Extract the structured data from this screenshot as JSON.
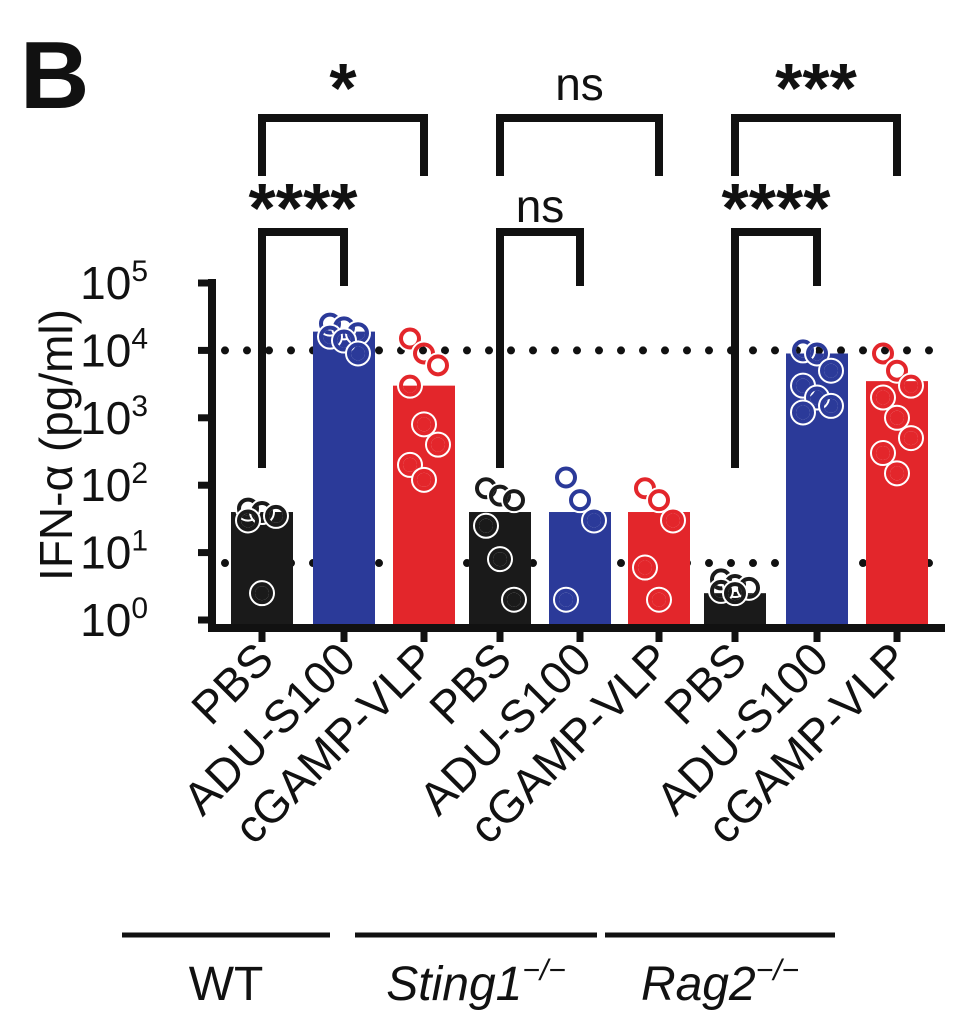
{
  "panel_label": "B",
  "chart_data": {
    "type": "bar",
    "ylabel": "IFN-α (pg/ml)",
    "yscale": "log",
    "ylim": [
      1,
      100000
    ],
    "yticks": [
      {
        "value": 1,
        "base": "10",
        "exp": "0"
      },
      {
        "value": 10,
        "base": "10",
        "exp": "1"
      },
      {
        "value": 100,
        "base": "10",
        "exp": "2"
      },
      {
        "value": 1000,
        "base": "10",
        "exp": "3"
      },
      {
        "value": 10000,
        "base": "10",
        "exp": "4"
      },
      {
        "value": 100000,
        "base": "10",
        "exp": "5"
      }
    ],
    "reference_lines": [
      {
        "value": 10000,
        "style": "dotted"
      },
      {
        "value": 7,
        "style": "dotted"
      }
    ],
    "categories": [
      "PBS",
      "ADU-S100",
      "cGAMP-VLP",
      "PBS",
      "ADU-S100",
      "cGAMP-VLP",
      "PBS",
      "ADU-S100",
      "cGAMP-VLP"
    ],
    "groups": [
      {
        "label": "WT",
        "italic": false,
        "sup": "",
        "categories": [
          0,
          1,
          2
        ]
      },
      {
        "label": "Sting1",
        "italic": true,
        "sup": "−/−",
        "categories": [
          3,
          4,
          5
        ]
      },
      {
        "label": "Rag2",
        "italic": true,
        "sup": "−/−",
        "categories": [
          6,
          7,
          8
        ]
      }
    ],
    "colors": {
      "PBS": "#1a1a1a",
      "ADU-S100": "#2b3a99",
      "cGAMP-VLP": "#e3262b"
    },
    "bars": [
      {
        "category": "PBS",
        "group": "WT",
        "value": 40,
        "points": [
          45,
          40,
          35,
          30,
          2.5
        ]
      },
      {
        "category": "ADU-S100",
        "group": "WT",
        "value": 19000,
        "points": [
          25000,
          22000,
          18000,
          16000,
          14000,
          9000
        ]
      },
      {
        "category": "cGAMP-VLP",
        "group": "WT",
        "value": 3000,
        "points": [
          15000,
          9000,
          6000,
          3000,
          800,
          400,
          200,
          120
        ]
      },
      {
        "category": "PBS",
        "group": "Sting1",
        "value": 40,
        "points": [
          90,
          70,
          60,
          25,
          8,
          2
        ]
      },
      {
        "category": "ADU-S100",
        "group": "Sting1",
        "value": 40,
        "points": [
          130,
          60,
          30,
          2
        ]
      },
      {
        "category": "cGAMP-VLP",
        "group": "Sting1",
        "value": 40,
        "points": [
          90,
          60,
          30,
          6,
          2
        ]
      },
      {
        "category": "PBS",
        "group": "Rag2",
        "value": 2.5,
        "points": [
          4,
          3.3,
          3,
          2.7,
          2.5
        ]
      },
      {
        "category": "ADU-S100",
        "group": "Rag2",
        "value": 9000,
        "points": [
          10000,
          9000,
          5000,
          3000,
          2000,
          1500,
          1200
        ]
      },
      {
        "category": "cGAMP-VLP",
        "group": "Rag2",
        "value": 3500,
        "points": [
          9000,
          5000,
          3000,
          2000,
          1000,
          500,
          300,
          150
        ]
      }
    ],
    "significance": [
      {
        "from": 0,
        "to": 1,
        "label": "****",
        "tier": 1
      },
      {
        "from": 0,
        "to": 2,
        "label": "*",
        "tier": 2
      },
      {
        "from": 3,
        "to": 4,
        "label": "ns",
        "tier": 1
      },
      {
        "from": 3,
        "to": 5,
        "label": "ns",
        "tier": 2
      },
      {
        "from": 6,
        "to": 7,
        "label": "****",
        "tier": 1
      },
      {
        "from": 6,
        "to": 8,
        "label": "***",
        "tier": 2
      }
    ]
  }
}
